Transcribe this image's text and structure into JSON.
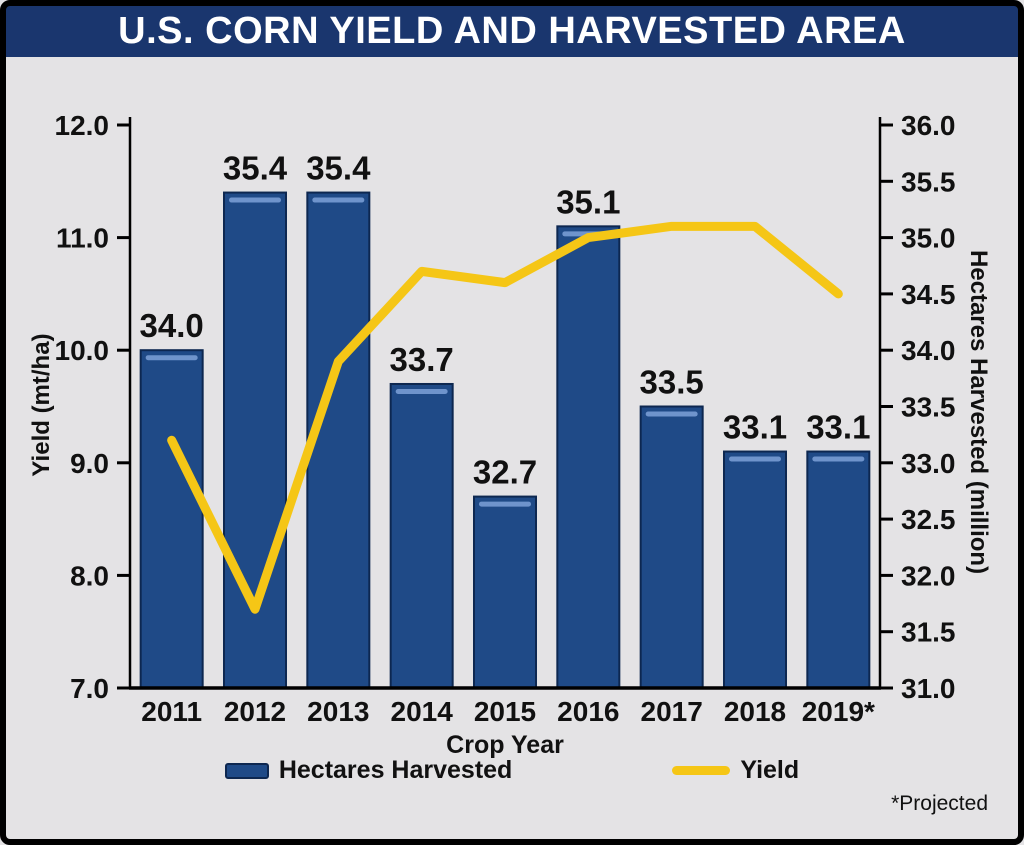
{
  "title": "U.S. CORN YIELD AND HARVESTED AREA",
  "footnote": "*Projected",
  "legend": {
    "bars_label": "Hectares Harvested",
    "line_label": "Yield"
  },
  "colors": {
    "title_bg": "#1a366e",
    "background": "#e4e3e5",
    "bar": "#1f4a87",
    "bar_border": "#0d2750",
    "bar_highlight": "#6f94cc",
    "line": "#f5c616",
    "text": "#111111"
  },
  "chart_data": {
    "type": "bar+line",
    "title": "U.S. CORN YIELD AND HARVESTED AREA",
    "categories": [
      "2011",
      "2012",
      "2013",
      "2014",
      "2015",
      "2016",
      "2017",
      "2018",
      "2019*"
    ],
    "series": [
      {
        "name": "Hectares Harvested",
        "type": "bar",
        "axis": "right",
        "values": [
          34.0,
          35.4,
          35.4,
          33.7,
          32.7,
          35.1,
          33.5,
          33.1,
          33.1
        ],
        "labels": [
          "34.0",
          "35.4",
          "35.4",
          "33.7",
          "32.7",
          "35.1",
          "33.5",
          "33.1",
          "33.1"
        ]
      },
      {
        "name": "Yield",
        "type": "line",
        "axis": "left",
        "values": [
          9.2,
          7.7,
          9.9,
          10.7,
          10.6,
          11.0,
          11.1,
          11.1,
          10.5
        ]
      }
    ],
    "xlabel": "Crop Year",
    "left_axis": {
      "label": "Yield (mt/ha)",
      "min": 7.0,
      "max": 12.0,
      "ticks": [
        "7.0",
        "8.0",
        "9.0",
        "10.0",
        "11.0",
        "12.0"
      ]
    },
    "right_axis": {
      "label": "Hectares Harvested (million)",
      "min": 31.0,
      "max": 36.0,
      "ticks": [
        "31.0",
        "31.5",
        "32.0",
        "32.5",
        "33.0",
        "33.5",
        "34.0",
        "34.5",
        "35.0",
        "35.5",
        "36.0"
      ]
    },
    "grid": false,
    "legend_position": "bottom"
  }
}
